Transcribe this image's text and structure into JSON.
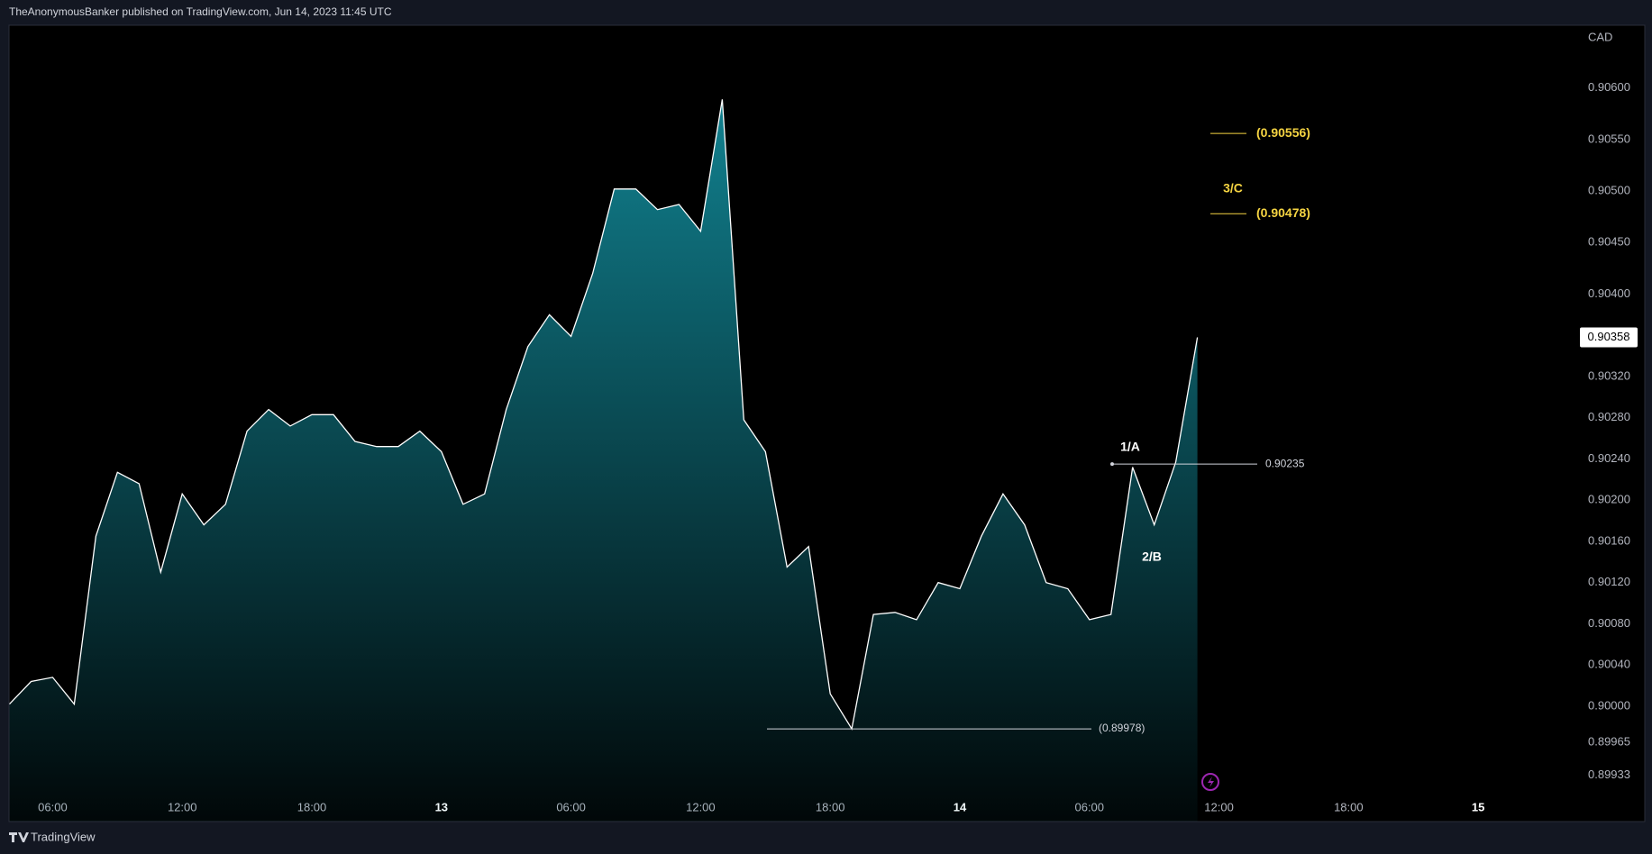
{
  "header": "TheAnonymousBanker published on TradingView.com, Jun 14, 2023 11:45 UTC",
  "footer": "TradingView",
  "chart_data": {
    "type": "area",
    "currency": "CAD",
    "categories": [
      null,
      null,
      "06:00",
      null,
      null,
      null,
      null,
      null,
      "12:00",
      null,
      null,
      null,
      null,
      null,
      "18:00",
      null,
      null,
      null,
      null,
      null,
      "13",
      null,
      null,
      null,
      null,
      null,
      "06:00",
      null,
      null,
      null,
      null,
      null,
      "12:00",
      null,
      null,
      null,
      null,
      null,
      "18:00",
      null,
      null,
      null,
      null,
      null,
      "14",
      null,
      null,
      null,
      null,
      null,
      "06:00",
      null,
      null,
      null,
      null,
      null,
      "12:00",
      null,
      null,
      null,
      null,
      null,
      "18:00",
      null,
      null,
      null,
      null,
      null,
      "15",
      null,
      null,
      null,
      null
    ],
    "values": [
      0.90002,
      0.90024,
      0.90028,
      0.90002,
      0.90165,
      0.90227,
      0.90216,
      0.9013,
      0.90206,
      0.90176,
      0.90196,
      0.90267,
      0.90288,
      0.90272,
      0.90283,
      0.90283,
      0.90257,
      0.90252,
      0.90252,
      0.90267,
      0.90247,
      0.90196,
      0.90206,
      0.90288,
      0.90349,
      0.9038,
      0.90359,
      0.9042,
      0.90502,
      0.90502,
      0.90482,
      0.90487,
      0.90461,
      0.90589,
      0.90278,
      0.90247,
      0.90135,
      0.90155,
      0.90012,
      0.89978,
      0.90089,
      0.90091,
      0.90084,
      0.9012,
      0.90114,
      0.90165,
      0.90206,
      0.90176,
      0.9012,
      0.90114,
      0.90084,
      0.90089,
      0.90232,
      0.90176,
      0.90237,
      0.90358,
      null,
      null,
      null,
      null,
      null,
      null,
      null,
      null,
      null,
      null,
      null,
      null,
      null,
      null,
      null,
      null,
      null
    ],
    "line_color": "#ffffff",
    "fill_color": "#1497a8",
    "ylim": [
      0.89888,
      0.90661
    ],
    "yticks": [
      {
        "value": 0.906,
        "label": "0.90600"
      },
      {
        "value": 0.9055,
        "label": "0.90550"
      },
      {
        "value": 0.905,
        "label": "0.90500"
      },
      {
        "value": 0.9045,
        "label": "0.90450"
      },
      {
        "value": 0.904,
        "label": "0.90400"
      },
      {
        "value": 0.9032,
        "label": "0.90320"
      },
      {
        "value": 0.9028,
        "label": "0.90280"
      },
      {
        "value": 0.9024,
        "label": "0.90240"
      },
      {
        "value": 0.902,
        "label": "0.90200"
      },
      {
        "value": 0.9016,
        "label": "0.90160"
      },
      {
        "value": 0.9012,
        "label": "0.90120"
      },
      {
        "value": 0.9008,
        "label": "0.90080"
      },
      {
        "value": 0.9004,
        "label": "0.90040"
      },
      {
        "value": 0.9,
        "label": "0.90000"
      },
      {
        "value": 0.89965,
        "label": "0.89965"
      },
      {
        "value": 0.89933,
        "label": "0.89933"
      }
    ],
    "last_price": 0.90358,
    "levels": [
      {
        "label": "(0.90556)",
        "value": 0.90556,
        "color": "#f5d442"
      },
      {
        "label": "(0.90478)",
        "value": 0.90478,
        "color": "#f5d442"
      },
      {
        "label": "0.90235",
        "value": 0.90235,
        "color": "#d1d4dc"
      },
      {
        "label": "(0.89978)",
        "value": 0.89978,
        "color": "#d1d4dc"
      }
    ],
    "annotations": [
      {
        "text": "3/C",
        "color": "#f5d442"
      },
      {
        "text": "1/A",
        "color": "#ffffff"
      },
      {
        "text": "2/B",
        "color": "#ffffff"
      }
    ],
    "grid": false
  }
}
